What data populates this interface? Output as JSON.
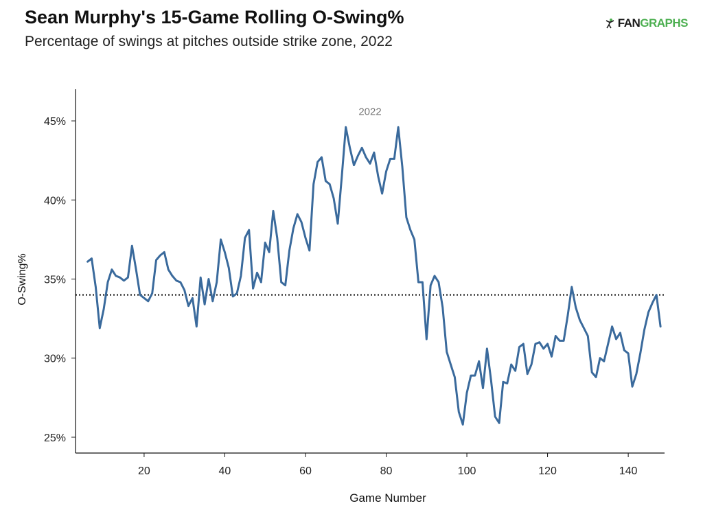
{
  "title": "Sean Murphy's 15-Game Rolling O-Swing%",
  "subtitle": "Percentage of swings at pitches outside strike zone, 2022",
  "logo": {
    "fan": "FAN",
    "graphs": "GRAPHS"
  },
  "chart_data": {
    "type": "line",
    "xlabel": "Game Number",
    "ylabel": "O-Swing%",
    "xlim": [
      3,
      149
    ],
    "ylim": [
      24,
      47
    ],
    "xticks": [
      20,
      40,
      60,
      80,
      100,
      120,
      140
    ],
    "yticks": [
      25,
      30,
      35,
      40,
      45
    ],
    "ytick_labels": [
      "25%",
      "30%",
      "35%",
      "40%",
      "45%"
    ],
    "reference_line": {
      "y": 34.0,
      "style": "dotted"
    },
    "grid": false,
    "color": "#3a6a9c",
    "series": [
      {
        "name": "2022",
        "x": [
          6,
          7,
          8,
          9,
          10,
          11,
          12,
          13,
          14,
          15,
          16,
          17,
          18,
          19,
          20,
          21,
          22,
          23,
          24,
          25,
          26,
          27,
          28,
          29,
          30,
          31,
          32,
          33,
          34,
          35,
          36,
          37,
          38,
          39,
          40,
          41,
          42,
          43,
          44,
          45,
          46,
          47,
          48,
          49,
          50,
          51,
          52,
          53,
          54,
          55,
          56,
          57,
          58,
          59,
          60,
          61,
          62,
          63,
          64,
          65,
          66,
          67,
          68,
          69,
          70,
          71,
          72,
          73,
          74,
          75,
          76,
          77,
          78,
          79,
          80,
          81,
          82,
          83,
          84,
          85,
          86,
          87,
          88,
          89,
          90,
          91,
          92,
          93,
          94,
          95,
          96,
          97,
          98,
          99,
          100,
          101,
          102,
          103,
          104,
          105,
          106,
          107,
          108,
          109,
          110,
          111,
          112,
          113,
          114,
          115,
          116,
          117,
          118,
          119,
          120,
          121,
          122,
          123,
          124,
          125,
          126,
          127,
          128,
          129,
          130,
          131,
          132,
          133,
          134,
          135,
          136,
          137,
          138,
          139,
          140,
          141,
          142,
          143,
          144,
          145,
          146,
          147,
          148
        ],
        "y": [
          36.1,
          36.3,
          34.5,
          31.9,
          33.1,
          34.8,
          35.6,
          35.2,
          35.1,
          34.9,
          35.1,
          37.1,
          35.6,
          34.0,
          33.8,
          33.6,
          34.1,
          36.2,
          36.5,
          36.7,
          35.6,
          35.2,
          34.9,
          34.8,
          34.3,
          33.3,
          33.8,
          32.0,
          35.1,
          33.4,
          35.0,
          33.6,
          34.8,
          37.5,
          36.7,
          35.7,
          33.9,
          34.1,
          35.2,
          37.6,
          38.1,
          34.4,
          35.4,
          34.8,
          37.3,
          36.7,
          39.3,
          37.6,
          34.8,
          34.6,
          36.8,
          38.2,
          39.1,
          38.6,
          37.6,
          36.8,
          41.0,
          42.4,
          42.7,
          41.2,
          41.0,
          40.1,
          38.5,
          41.5,
          44.6,
          43.3,
          42.2,
          42.8,
          43.3,
          42.7,
          42.3,
          43.0,
          41.5,
          40.4,
          41.8,
          42.6,
          42.6,
          44.6,
          42.1,
          38.9,
          38.1,
          37.5,
          34.8,
          34.8,
          31.2,
          34.6,
          35.2,
          34.8,
          33.2,
          30.4,
          29.6,
          28.8,
          26.6,
          25.8,
          27.8,
          28.9,
          28.9,
          29.8,
          28.1,
          30.6,
          28.6,
          26.3,
          25.9,
          28.5,
          28.4,
          29.6,
          29.2,
          30.7,
          30.9,
          29.0,
          29.6,
          30.9,
          31.0,
          30.6,
          30.9,
          30.1,
          31.4,
          31.1,
          31.1,
          32.7,
          34.5,
          33.2,
          32.4,
          31.9,
          31.4,
          29.1,
          28.8,
          30.0,
          29.8,
          30.9,
          32.0,
          31.2,
          31.6,
          30.5,
          30.3,
          28.2,
          29.0,
          30.3,
          31.8,
          32.9,
          33.5,
          34.0,
          32.0
        ]
      }
    ]
  }
}
